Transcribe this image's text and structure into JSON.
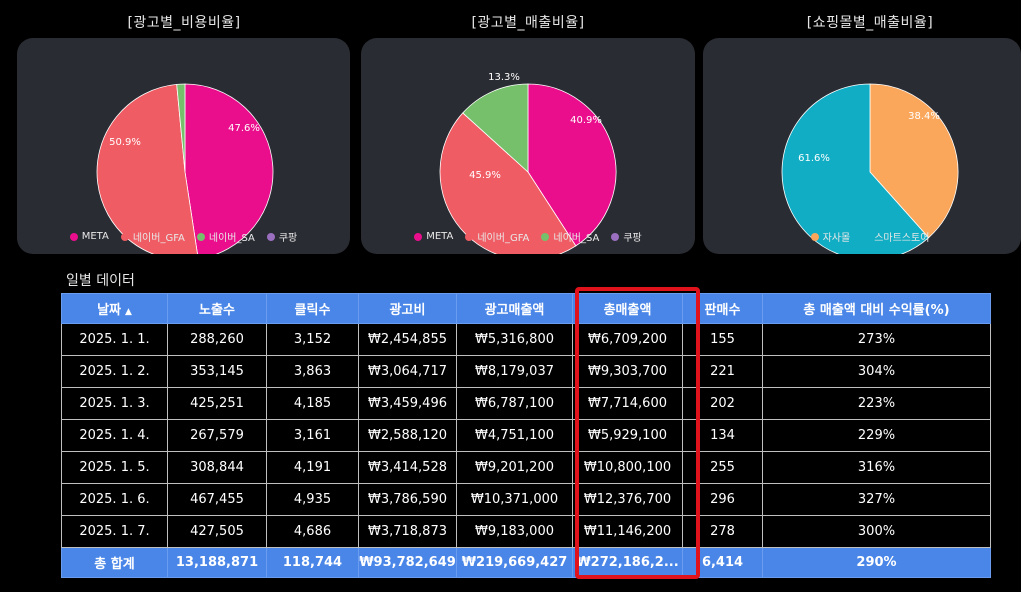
{
  "charts": [
    {
      "title": "[광고별_비용비율]",
      "colors": [
        "#ea0e8c",
        "#f05c63",
        "#76c06b",
        "#9b6fc0"
      ],
      "legend": [
        "META",
        "네이버_GFA",
        "네이버_SA",
        "쿠팡"
      ]
    },
    {
      "title": "[광고별_매출비율]",
      "colors": [
        "#ea0e8c",
        "#f05c63",
        "#76c06b",
        "#9b6fc0"
      ],
      "legend": [
        "META",
        "네이버_GFA",
        "네이버_SA",
        "쿠팡"
      ]
    },
    {
      "title": "[쇼핑몰별_매출비율]",
      "colors": [
        "#faa75b",
        "#11adc4"
      ],
      "legend": [
        "자사몰",
        "스마트스토어"
      ]
    }
  ],
  "chart_data": [
    {
      "type": "pie",
      "title": "[광고별_비용비율]",
      "categories": [
        "META",
        "네이버_GFA",
        "네이버_SA",
        "쿠팡"
      ],
      "values": [
        47.6,
        50.9,
        1.5,
        0
      ],
      "labels": [
        "47.6%",
        "50.9%",
        "",
        ""
      ],
      "legend_position": "bottom"
    },
    {
      "type": "pie",
      "title": "[광고별_매출비율]",
      "categories": [
        "META",
        "네이버_GFA",
        "네이버_SA",
        "쿠팡"
      ],
      "values": [
        40.9,
        45.9,
        13.3,
        0
      ],
      "labels": [
        "40.9%",
        "45.9%",
        "13.3%",
        ""
      ],
      "legend_position": "bottom"
    },
    {
      "type": "pie",
      "title": "[쇼핑몰별_매출비율]",
      "categories": [
        "자사몰",
        "스마트스토어"
      ],
      "values": [
        38.4,
        61.6
      ],
      "labels": [
        "38.4%",
        "61.6%"
      ],
      "legend_position": "bottom"
    }
  ],
  "table": {
    "title": "일별 데이터",
    "headers": [
      "날짜",
      "노출수",
      "클릭수",
      "광고비",
      "광고매출액",
      "총매출액",
      "판매수",
      "총 매출액 대비 수익률(%)"
    ],
    "sort_indicator": "▲",
    "rows": [
      [
        "2025. 1. 1.",
        "288,260",
        "3,152",
        "₩2,454,855",
        "₩5,316,800",
        "₩6,709,200",
        "155",
        "273%"
      ],
      [
        "2025. 1. 2.",
        "353,145",
        "3,863",
        "₩3,064,717",
        "₩8,179,037",
        "₩9,303,700",
        "221",
        "304%"
      ],
      [
        "2025. 1. 3.",
        "425,251",
        "4,185",
        "₩3,459,496",
        "₩6,787,100",
        "₩7,714,600",
        "202",
        "223%"
      ],
      [
        "2025. 1. 4.",
        "267,579",
        "3,161",
        "₩2,588,120",
        "₩4,751,100",
        "₩5,929,100",
        "134",
        "229%"
      ],
      [
        "2025. 1. 5.",
        "308,844",
        "4,191",
        "₩3,414,528",
        "₩9,201,200",
        "₩10,800,100",
        "255",
        "316%"
      ],
      [
        "2025. 1. 6.",
        "467,455",
        "4,935",
        "₩3,786,590",
        "₩10,371,000",
        "₩12,376,700",
        "296",
        "327%"
      ],
      [
        "2025. 1. 7.",
        "427,505",
        "4,686",
        "₩3,718,873",
        "₩9,183,000",
        "₩11,146,200",
        "278",
        "300%"
      ]
    ],
    "total": [
      "총 합계",
      "13,188,871",
      "118,744",
      "₩93,782,649",
      "₩219,669,427",
      "₩272,186,2...",
      "6,414",
      "290%"
    ]
  }
}
